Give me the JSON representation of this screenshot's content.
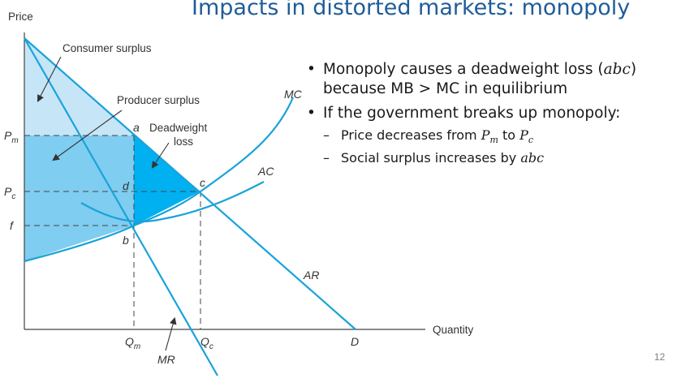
{
  "slide": {
    "title": "Impacts in distorted markets: monopoly",
    "page_number": "12"
  },
  "bullets": {
    "b1": {
      "text_before": "Monopoly causes a deadweight loss (",
      "italic": "abc",
      "text_after": ")",
      "line2": "because MB > MC in equilibrium"
    },
    "b2": {
      "text": "If the government breaks up monopoly:"
    },
    "sub1": {
      "text": "Price decreases from ",
      "p1": "P",
      "p1_sub": "m",
      "mid": " to ",
      "p2": "P",
      "p2_sub": "c"
    },
    "sub2": {
      "text": "Social surplus increases by ",
      "italic": "abc"
    }
  },
  "diagram": {
    "axis": {
      "y_label": "Price",
      "x_label": "Quantity"
    },
    "curves": {
      "mc": "MC",
      "ac": "AC",
      "ar": "AR",
      "mr": "MR"
    },
    "labels": {
      "consumer_surplus": "Consumer surplus",
      "producer_surplus": "Producer surplus",
      "deadweight_1": "Deadweight",
      "deadweight_2": "loss"
    },
    "points": {
      "a": "a",
      "b": "b",
      "c": "c",
      "d": "d",
      "D": "D"
    },
    "prices": {
      "pm": "P",
      "pm_sub": "m",
      "pc": "P",
      "pc_sub": "c",
      "f": "f"
    },
    "quantities": {
      "qm": "Q",
      "qm_sub": "m",
      "qc": "Q",
      "qc_sub": "c"
    },
    "colors": {
      "consumer_surplus": "#c6e6f8",
      "producer_surplus": "#7fcdf0",
      "deadweight_loss": "#00b0f0",
      "curve": "#1aa3d9",
      "text": "#333333"
    }
  }
}
